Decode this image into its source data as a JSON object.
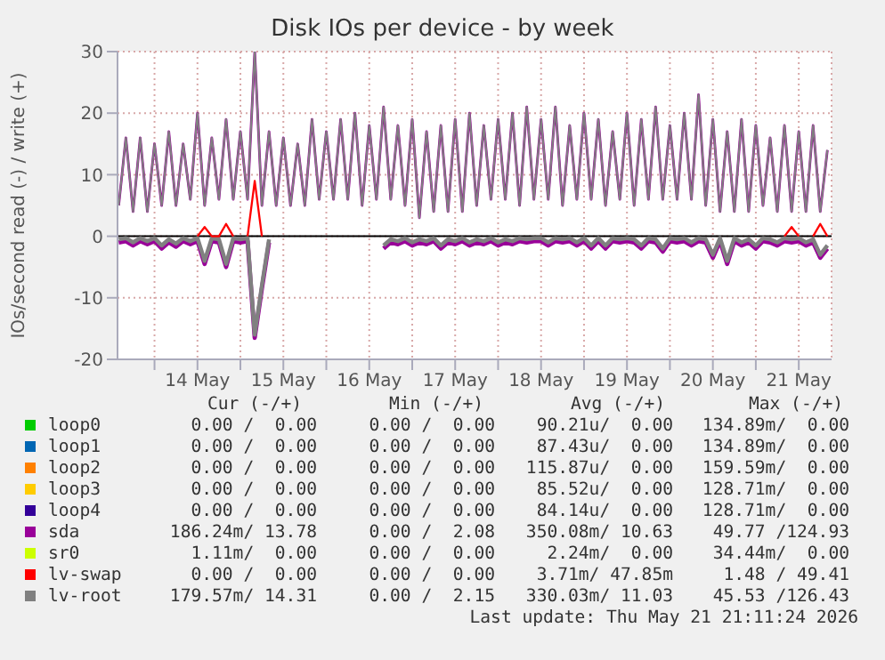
{
  "chart_data": {
    "type": "line",
    "title": "Disk IOs per device - by week",
    "ylabel": "IOs/second read (-) / write (+)",
    "x": [
      "2026-05-13T14:00",
      "2026-05-13T16:00",
      "2026-05-13T18:00",
      "2026-05-13T20:00",
      "2026-05-13T22:00",
      "2026-05-14T00:00",
      "2026-05-14T02:00",
      "2026-05-14T04:00",
      "2026-05-14T06:00",
      "2026-05-14T08:00",
      "2026-05-14T10:00",
      "2026-05-14T12:00",
      "2026-05-14T14:00",
      "2026-05-14T16:00",
      "2026-05-14T18:00",
      "2026-05-14T20:00",
      "2026-05-14T22:00",
      "2026-05-15T00:00",
      "2026-05-15T02:00",
      "2026-05-15T04:00",
      "2026-05-15T06:00",
      "2026-05-15T08:00",
      "2026-05-15T10:00",
      "2026-05-15T12:00",
      "2026-05-15T14:00",
      "2026-05-15T16:00",
      "2026-05-15T18:00",
      "2026-05-15T20:00",
      "2026-05-15T22:00",
      "2026-05-16T00:00",
      "2026-05-16T02:00",
      "2026-05-16T04:00",
      "2026-05-16T06:00",
      "2026-05-16T08:00",
      "2026-05-16T10:00",
      "2026-05-16T12:00",
      "2026-05-16T14:00",
      "2026-05-16T16:00",
      "2026-05-16T18:00",
      "2026-05-16T20:00",
      "2026-05-16T22:00",
      "2026-05-17T00:00",
      "2026-05-17T02:00",
      "2026-05-17T04:00",
      "2026-05-17T06:00",
      "2026-05-17T08:00",
      "2026-05-17T10:00",
      "2026-05-17T12:00",
      "2026-05-17T14:00",
      "2026-05-17T16:00",
      "2026-05-17T18:00",
      "2026-05-17T20:00",
      "2026-05-17T22:00",
      "2026-05-18T00:00",
      "2026-05-18T02:00",
      "2026-05-18T04:00",
      "2026-05-18T06:00",
      "2026-05-18T08:00",
      "2026-05-18T10:00",
      "2026-05-18T12:00",
      "2026-05-18T14:00",
      "2026-05-18T16:00",
      "2026-05-18T18:00",
      "2026-05-18T20:00",
      "2026-05-18T22:00",
      "2026-05-19T00:00",
      "2026-05-19T02:00",
      "2026-05-19T04:00",
      "2026-05-19T06:00",
      "2026-05-19T08:00",
      "2026-05-19T10:00",
      "2026-05-19T12:00",
      "2026-05-19T14:00",
      "2026-05-19T16:00",
      "2026-05-19T18:00",
      "2026-05-19T20:00",
      "2026-05-19T22:00",
      "2026-05-20T00:00",
      "2026-05-20T02:00",
      "2026-05-20T04:00",
      "2026-05-20T06:00",
      "2026-05-20T08:00",
      "2026-05-20T10:00",
      "2026-05-20T12:00",
      "2026-05-20T14:00",
      "2026-05-20T16:00",
      "2026-05-20T18:00",
      "2026-05-20T20:00",
      "2026-05-20T22:00",
      "2026-05-21T00:00",
      "2026-05-21T02:00",
      "2026-05-21T04:00",
      "2026-05-21T06:00",
      "2026-05-21T08:00",
      "2026-05-21T10:00",
      "2026-05-21T12:00",
      "2026-05-21T14:00",
      "2026-05-21T16:00",
      "2026-05-21T18:00",
      "2026-05-21T20:00"
    ],
    "series": [
      {
        "name": "loop0",
        "color": "#00cc00",
        "values": [
          null,
          null,
          null,
          null,
          null,
          null,
          null,
          null,
          null,
          null,
          null,
          null,
          null,
          null,
          null,
          null,
          null,
          null,
          null,
          null,
          null,
          null,
          null,
          null,
          null,
          null,
          null,
          null,
          null,
          null,
          null,
          null,
          null,
          null,
          null,
          null,
          null,
          null,
          null,
          null,
          null,
          null,
          null,
          null,
          null,
          null,
          null,
          null,
          null,
          null,
          null,
          null,
          null,
          null,
          null,
          null,
          null,
          null,
          null,
          null,
          null,
          null,
          null,
          null,
          null,
          null,
          null,
          null,
          null,
          null,
          null,
          null,
          null,
          null,
          null,
          null,
          null,
          null,
          null,
          null,
          null,
          null,
          null,
          null,
          null,
          null,
          null,
          null,
          null,
          null,
          null,
          null,
          null,
          null,
          null,
          null,
          null,
          null,
          null,
          null
        ]
      },
      {
        "name": "loop1",
        "color": "#0066b3",
        "values": [
          null,
          null,
          null,
          null,
          null,
          null,
          null,
          null,
          null,
          null,
          null,
          null,
          null,
          null,
          null,
          null,
          null,
          null,
          null,
          null,
          null,
          null,
          null,
          null,
          null,
          null,
          null,
          null,
          null,
          null,
          null,
          null,
          null,
          null,
          null,
          null,
          null,
          null,
          null,
          null,
          null,
          null,
          null,
          null,
          null,
          null,
          null,
          null,
          null,
          null,
          null,
          null,
          null,
          null,
          null,
          null,
          null,
          null,
          null,
          null,
          null,
          null,
          null,
          null,
          null,
          null,
          null,
          null,
          null,
          null,
          null,
          null,
          null,
          null,
          null,
          null,
          null,
          null,
          null,
          null,
          null,
          null,
          null,
          null,
          null,
          null,
          null,
          null,
          null,
          null,
          null,
          null,
          null,
          null,
          null,
          null,
          null,
          null,
          null,
          null
        ]
      },
      {
        "name": "loop2",
        "color": "#ff8000",
        "values": [
          null,
          null,
          null,
          null,
          null,
          null,
          null,
          null,
          null,
          null,
          null,
          null,
          null,
          null,
          null,
          null,
          null,
          null,
          null,
          null,
          null,
          null,
          null,
          null,
          null,
          null,
          null,
          null,
          null,
          null,
          null,
          null,
          null,
          null,
          null,
          null,
          null,
          null,
          null,
          null,
          null,
          null,
          null,
          null,
          null,
          null,
          null,
          null,
          null,
          null,
          null,
          null,
          null,
          null,
          null,
          null,
          null,
          null,
          null,
          null,
          null,
          null,
          null,
          null,
          null,
          null,
          null,
          null,
          null,
          null,
          null,
          null,
          null,
          null,
          null,
          null,
          null,
          null,
          null,
          null,
          null,
          null,
          null,
          null,
          null,
          null,
          null,
          null,
          null,
          null,
          null,
          null,
          null,
          null,
          null,
          null,
          null,
          null,
          null,
          null
        ]
      },
      {
        "name": "loop3",
        "color": "#ffcc00",
        "values": [
          null,
          null,
          null,
          null,
          null,
          null,
          null,
          null,
          null,
          null,
          null,
          null,
          null,
          null,
          null,
          null,
          null,
          null,
          null,
          null,
          null,
          null,
          null,
          null,
          null,
          null,
          null,
          null,
          null,
          null,
          null,
          null,
          null,
          null,
          null,
          null,
          null,
          null,
          null,
          null,
          null,
          null,
          null,
          null,
          null,
          null,
          null,
          null,
          null,
          null,
          null,
          null,
          null,
          null,
          null,
          null,
          null,
          null,
          null,
          null,
          null,
          null,
          null,
          null,
          null,
          null,
          null,
          null,
          null,
          null,
          null,
          null,
          null,
          null,
          null,
          null,
          null,
          null,
          null,
          null,
          null,
          null,
          null,
          null,
          null,
          null,
          null,
          null,
          null,
          null,
          null,
          null,
          null,
          null,
          null,
          null,
          null,
          null,
          null,
          null
        ]
      },
      {
        "name": "loop4",
        "color": "#330099",
        "values": [
          null,
          null,
          null,
          null,
          null,
          null,
          null,
          null,
          null,
          null,
          null,
          null,
          null,
          null,
          null,
          null,
          null,
          null,
          null,
          null,
          null,
          null,
          null,
          null,
          null,
          null,
          null,
          null,
          null,
          null,
          null,
          null,
          null,
          null,
          null,
          null,
          null,
          null,
          null,
          null,
          null,
          null,
          null,
          null,
          null,
          null,
          null,
          null,
          null,
          null,
          null,
          null,
          null,
          null,
          null,
          null,
          null,
          null,
          null,
          null,
          null,
          null,
          null,
          null,
          null,
          null,
          null,
          null,
          null,
          null,
          null,
          null,
          null,
          null,
          null,
          null,
          null,
          null,
          null,
          null,
          null,
          null,
          null,
          null,
          null,
          null,
          null,
          null,
          null,
          null,
          null,
          null,
          null,
          null,
          null,
          null,
          null,
          null,
          null,
          null
        ]
      },
      {
        "name": "sda",
        "color": "#990099",
        "values": [
          5,
          16,
          4,
          16,
          4,
          15,
          5,
          17,
          5,
          15,
          6,
          20,
          5,
          16,
          6,
          19,
          6,
          17,
          6,
          30,
          5,
          17,
          5,
          16,
          5,
          15,
          5,
          19,
          6,
          17,
          6,
          19,
          6,
          20,
          5,
          18,
          6,
          21,
          6,
          18,
          5,
          19,
          3,
          17,
          4,
          18,
          4,
          19,
          4,
          20,
          5,
          18,
          6,
          19,
          6,
          20,
          5,
          21,
          6,
          19,
          6,
          21,
          5,
          18,
          6,
          20,
          6,
          19,
          5,
          17,
          6,
          20,
          5,
          19,
          6,
          21,
          6,
          18,
          6,
          20,
          6,
          23,
          5,
          19,
          4,
          17,
          4,
          19,
          4,
          18,
          5,
          16,
          4,
          18,
          4,
          17,
          4,
          18,
          4,
          14
        ]
      },
      {
        "name": "sr0",
        "color": "#ccff00",
        "values": [
          null,
          null,
          null,
          null,
          null,
          null,
          null,
          null,
          null,
          null,
          null,
          null,
          null,
          null,
          null,
          null,
          null,
          null,
          null,
          null,
          null,
          null,
          null,
          null,
          null,
          null,
          null,
          null,
          null,
          null,
          null,
          null,
          null,
          null,
          null,
          null,
          null,
          null,
          null,
          null,
          null,
          null,
          null,
          null,
          null,
          null,
          null,
          null,
          null,
          null,
          null,
          null,
          null,
          null,
          null,
          null,
          null,
          null,
          null,
          null,
          null,
          null,
          null,
          null,
          null,
          null,
          null,
          null,
          null,
          null,
          null,
          null,
          null,
          null,
          null,
          null,
          null,
          null,
          null,
          null,
          null,
          null,
          null,
          null,
          null,
          null,
          null,
          null,
          null,
          null,
          null,
          null,
          null,
          null,
          null,
          null,
          null,
          null,
          null,
          null
        ]
      },
      {
        "name": "lv-swap",
        "color": "#ff0000",
        "values": [
          null,
          null,
          null,
          null,
          null,
          null,
          null,
          null,
          null,
          null,
          null,
          0,
          1.5,
          0,
          0,
          2,
          0,
          null,
          0,
          9,
          0,
          null,
          null,
          null,
          null,
          null,
          null,
          null,
          null,
          null,
          null,
          null,
          null,
          null,
          null,
          null,
          null,
          null,
          null,
          null,
          null,
          null,
          null,
          null,
          null,
          null,
          null,
          null,
          null,
          null,
          null,
          null,
          null,
          null,
          null,
          null,
          null,
          null,
          null,
          null,
          null,
          null,
          null,
          null,
          null,
          null,
          null,
          null,
          null,
          null,
          null,
          null,
          null,
          null,
          null,
          null,
          null,
          null,
          null,
          null,
          null,
          null,
          null,
          null,
          null,
          null,
          null,
          null,
          null,
          null,
          null,
          null,
          null,
          0,
          1.5,
          0,
          null,
          0,
          2,
          0
        ]
      },
      {
        "name": "lv-root",
        "color": "#808080",
        "values": [
          5,
          16,
          4,
          16,
          4,
          15,
          5,
          17,
          5,
          15,
          6,
          20,
          5,
          16,
          6,
          19,
          6,
          17,
          6,
          30,
          5,
          17,
          5,
          16,
          5,
          15,
          5,
          19,
          6,
          17,
          6,
          19,
          6,
          20,
          5,
          18,
          6,
          21,
          6,
          18,
          5,
          19,
          3,
          17,
          4,
          18,
          4,
          19,
          4,
          20,
          5,
          18,
          6,
          19,
          6,
          20,
          5,
          21,
          6,
          19,
          6,
          21,
          5,
          18,
          6,
          20,
          6,
          19,
          5,
          17,
          6,
          20,
          5,
          19,
          6,
          21,
          6,
          18,
          6,
          20,
          6,
          23,
          5,
          19,
          4,
          17,
          4,
          19,
          4,
          18,
          5,
          16,
          4,
          18,
          4,
          17,
          4,
          18,
          4,
          14
        ]
      },
      {
        "color": "#990099",
        "values": [
          -1,
          -0.8,
          -1.5,
          -0.8,
          -1.3,
          -0.8,
          -2,
          -1,
          -1.7,
          -0.8,
          -1.3,
          -0.8,
          -4.5,
          -0.8,
          -1,
          -5,
          -0.8,
          -1,
          -0.8,
          -16.5,
          -8.5,
          -1,
          null,
          null,
          null,
          null,
          null,
          null,
          null,
          null,
          null,
          null,
          null,
          null,
          null,
          null,
          null,
          -2,
          -1,
          -1.3,
          -0.8,
          -1.5,
          -1,
          -1.3,
          -0.8,
          -2,
          -1,
          -1.3,
          -0.8,
          -1.5,
          -1,
          -1.3,
          -0.8,
          -1.5,
          -1,
          -1.3,
          -0.8,
          -1,
          -0.8,
          -0.8,
          -1.5,
          -0.8,
          -1,
          -0.8,
          -1.5,
          -0.8,
          -2,
          -0.8,
          -2,
          -0.8,
          -1,
          -0.8,
          -1,
          -2,
          -0.8,
          -1,
          -2.5,
          -0.8,
          -1,
          -0.8,
          -1.5,
          -0.8,
          -1,
          -3.5,
          -0.8,
          -4.5,
          -0.8,
          -1.5,
          -1,
          -2,
          -0.8,
          -1,
          -1.5,
          -0.8,
          -1,
          -0.8,
          -1.5,
          -1,
          -3.5,
          -2
        ]
      },
      {
        "color": "#808080",
        "values": [
          -0.5,
          -0.3,
          -1,
          -0.3,
          -0.8,
          -0.3,
          -1.5,
          -0.5,
          -1.2,
          -0.3,
          -0.8,
          -0.3,
          -4,
          -0.3,
          -0.5,
          -4.5,
          -0.3,
          -0.5,
          -0.3,
          -16,
          -8,
          -0.5,
          null,
          null,
          null,
          null,
          null,
          null,
          null,
          null,
          null,
          null,
          null,
          null,
          null,
          null,
          null,
          -1.5,
          -0.5,
          -0.8,
          -0.3,
          -1,
          -0.5,
          -0.8,
          -0.3,
          -1.5,
          -0.5,
          -0.8,
          -0.3,
          -1,
          -0.5,
          -0.8,
          -0.3,
          -1,
          -0.5,
          -0.8,
          -0.3,
          -0.5,
          -0.3,
          -0.3,
          -1,
          -0.3,
          -0.5,
          -0.3,
          -1,
          -0.3,
          -1.5,
          -0.3,
          -1.5,
          -0.3,
          -0.5,
          -0.3,
          -0.5,
          -1.5,
          -0.3,
          -0.5,
          -2,
          -0.3,
          -0.5,
          -0.3,
          -1,
          -0.3,
          -0.5,
          -3,
          -0.3,
          -4,
          -0.3,
          -1,
          -0.5,
          -1.5,
          -0.3,
          -0.5,
          -1,
          -0.3,
          -0.5,
          -0.3,
          -1,
          -0.5,
          -3,
          -1.5
        ]
      }
    ],
    "xlim": [
      "2026-05-13T13:40",
      "2026-05-21T21:10"
    ],
    "xticks": [
      {
        "value": "2026-05-14T00:00",
        "label": null
      },
      {
        "value": "2026-05-14T12:00",
        "label": "14 May"
      },
      {
        "value": "2026-05-15T00:00",
        "label": null
      },
      {
        "value": "2026-05-15T12:00",
        "label": "15 May"
      },
      {
        "value": "2026-05-16T00:00",
        "label": null
      },
      {
        "value": "2026-05-16T12:00",
        "label": "16 May"
      },
      {
        "value": "2026-05-17T00:00",
        "label": null
      },
      {
        "value": "2026-05-17T12:00",
        "label": "17 May"
      },
      {
        "value": "2026-05-18T00:00",
        "label": null
      },
      {
        "value": "2026-05-18T12:00",
        "label": "18 May"
      },
      {
        "value": "2026-05-19T00:00",
        "label": null
      },
      {
        "value": "2026-05-19T12:00",
        "label": "19 May"
      },
      {
        "value": "2026-05-20T00:00",
        "label": null
      },
      {
        "value": "2026-05-20T12:00",
        "label": "20 May"
      },
      {
        "value": "2026-05-21T00:00",
        "label": null
      },
      {
        "value": "2026-05-21T12:00",
        "label": "21 May"
      }
    ],
    "ref_lines": [
      {
        "axis": "y",
        "value": 0,
        "color": "#000000"
      }
    ],
    "ylim": [
      -20,
      30
    ],
    "yticks": [
      -20,
      -10,
      0,
      10,
      20,
      30
    ],
    "grid": true,
    "legend": "bottom",
    "annotations": [
      "Cur (-/+)",
      "Min (-/+)",
      "Avg (-/+)",
      "Max (-/+)",
      "0.00 /  0.00",
      "0.00 /  0.00",
      "90.21u/  0.00",
      "134.89m/  0.00",
      "0.00 /  0.00",
      "0.00 /  0.00",
      "87.43u/  0.00",
      "134.89m/  0.00",
      "0.00 /  0.00",
      "0.00 /  0.00",
      "115.87u/  0.00",
      "159.59m/  0.00",
      "0.00 /  0.00",
      "0.00 /  0.00",
      "85.52u/  0.00",
      "128.71m/  0.00",
      "0.00 /  0.00",
      "0.00 /  0.00",
      "84.14u/  0.00",
      "128.71m/  0.00",
      "186.24m/ 13.78",
      "0.00 /  2.08",
      "350.08m/ 10.63",
      "49.77 /124.93",
      "1.11m/  0.00",
      "0.00 /  0.00",
      "2.24m/  0.00",
      "34.44m/  0.00",
      "0.00 /  0.00",
      "0.00 /  0.00",
      "3.71m/ 47.85m",
      "1.48 / 49.41",
      "179.57m/ 14.31",
      "0.00 /  2.15",
      "330.03m/ 11.03",
      "45.53 /126.43",
      "Last update: Thu May 21 21:11:24 2026"
    ]
  }
}
